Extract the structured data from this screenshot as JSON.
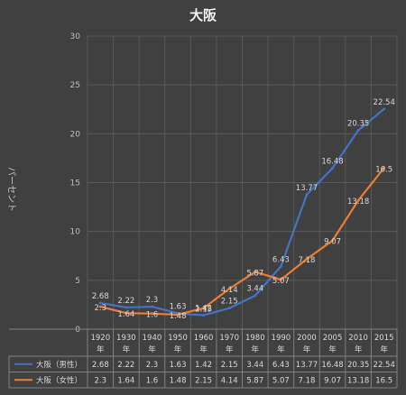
{
  "chart_data": {
    "type": "line",
    "title": "大阪",
    "ylabel": "パーセント",
    "ylim": [
      0,
      30
    ],
    "yticks": [
      0,
      5,
      10,
      15,
      20,
      25,
      30
    ],
    "grid": true,
    "categories": [
      "1920年",
      "1930年",
      "1940年",
      "1950年",
      "1960年",
      "1970年",
      "1980年",
      "1990年",
      "2000年",
      "2005年",
      "2010年",
      "2015年"
    ],
    "series": [
      {
        "name": "大阪（男性）",
        "color": "#4472c4",
        "values": [
          2.68,
          2.22,
          2.3,
          1.63,
          1.42,
          2.15,
          3.44,
          6.43,
          13.77,
          16.48,
          20.35,
          22.54
        ],
        "labels": [
          "2.68",
          "2.22",
          "2.3",
          "1.63",
          "1.42",
          "2.15",
          "3.44",
          "6.43",
          "13.77",
          "16.48",
          "20.35",
          "22.54"
        ]
      },
      {
        "name": "大阪（女性）",
        "color": "#ed7d31",
        "values": [
          2.3,
          1.64,
          1.6,
          1.48,
          2.15,
          4.14,
          5.87,
          5.07,
          7.18,
          9.07,
          13.18,
          16.5
        ],
        "labels": [
          "2.3",
          "1.64",
          "1.6",
          "1.48",
          "2.15",
          "4.14",
          "5.87",
          "5.07",
          "7.18",
          "9.07",
          "13.18",
          "16.5"
        ]
      }
    ]
  }
}
